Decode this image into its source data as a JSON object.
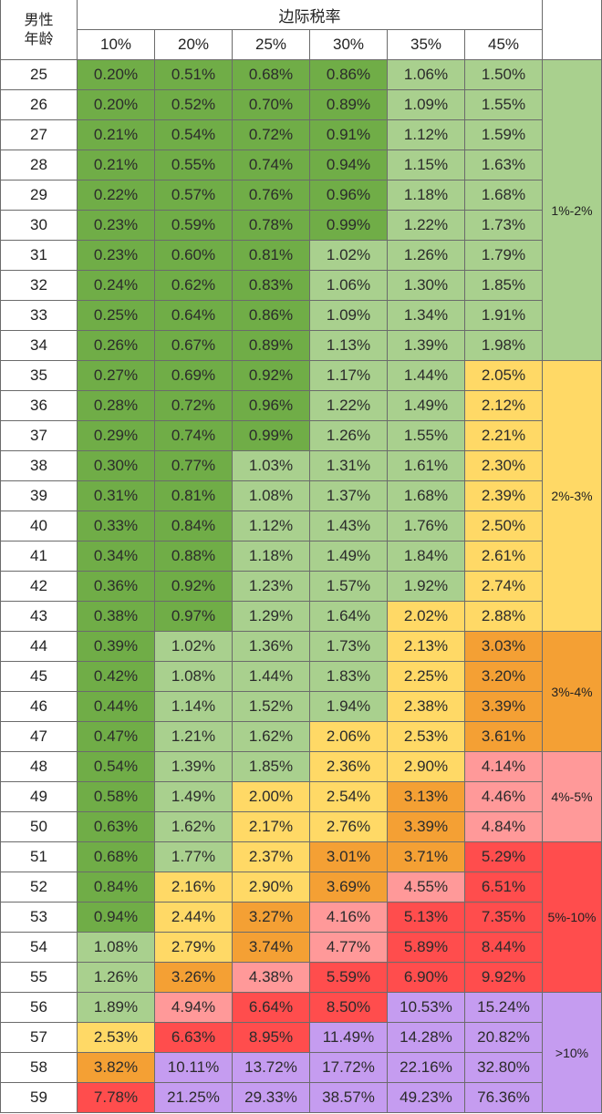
{
  "table": {
    "corner_line1": "男性",
    "corner_line2": "年龄",
    "group_header": "边际税率",
    "rates": [
      "10%",
      "20%",
      "25%",
      "30%",
      "35%",
      "45%"
    ],
    "colors": {
      "below_1": "#70ad47",
      "1_to_2": "#a9d08e",
      "2_to_3": "#ffd966",
      "3_to_4": "#f4a034",
      "4_to_5": "#ff9999",
      "5_to_10": "#ff4d4d",
      "above_10": "#c59cf0"
    },
    "rows": [
      {
        "age": "25",
        "values": [
          "0.20%",
          "0.51%",
          "0.68%",
          "0.86%",
          "1.06%",
          "1.50%"
        ]
      },
      {
        "age": "26",
        "values": [
          "0.20%",
          "0.52%",
          "0.70%",
          "0.89%",
          "1.09%",
          "1.55%"
        ]
      },
      {
        "age": "27",
        "values": [
          "0.21%",
          "0.54%",
          "0.72%",
          "0.91%",
          "1.12%",
          "1.59%"
        ]
      },
      {
        "age": "28",
        "values": [
          "0.21%",
          "0.55%",
          "0.74%",
          "0.94%",
          "1.15%",
          "1.63%"
        ]
      },
      {
        "age": "29",
        "values": [
          "0.22%",
          "0.57%",
          "0.76%",
          "0.96%",
          "1.18%",
          "1.68%"
        ]
      },
      {
        "age": "30",
        "values": [
          "0.23%",
          "0.59%",
          "0.78%",
          "0.99%",
          "1.22%",
          "1.73%"
        ]
      },
      {
        "age": "31",
        "values": [
          "0.23%",
          "0.60%",
          "0.81%",
          "1.02%",
          "1.26%",
          "1.79%"
        ]
      },
      {
        "age": "32",
        "values": [
          "0.24%",
          "0.62%",
          "0.83%",
          "1.06%",
          "1.30%",
          "1.85%"
        ]
      },
      {
        "age": "33",
        "values": [
          "0.25%",
          "0.64%",
          "0.86%",
          "1.09%",
          "1.34%",
          "1.91%"
        ]
      },
      {
        "age": "34",
        "values": [
          "0.26%",
          "0.67%",
          "0.89%",
          "1.13%",
          "1.39%",
          "1.98%"
        ]
      },
      {
        "age": "35",
        "values": [
          "0.27%",
          "0.69%",
          "0.92%",
          "1.17%",
          "1.44%",
          "2.05%"
        ]
      },
      {
        "age": "36",
        "values": [
          "0.28%",
          "0.72%",
          "0.96%",
          "1.22%",
          "1.49%",
          "2.12%"
        ]
      },
      {
        "age": "37",
        "values": [
          "0.29%",
          "0.74%",
          "0.99%",
          "1.26%",
          "1.55%",
          "2.21%"
        ]
      },
      {
        "age": "38",
        "values": [
          "0.30%",
          "0.77%",
          "1.03%",
          "1.31%",
          "1.61%",
          "2.30%"
        ]
      },
      {
        "age": "39",
        "values": [
          "0.31%",
          "0.81%",
          "1.08%",
          "1.37%",
          "1.68%",
          "2.39%"
        ]
      },
      {
        "age": "40",
        "values": [
          "0.33%",
          "0.84%",
          "1.12%",
          "1.43%",
          "1.76%",
          "2.50%"
        ]
      },
      {
        "age": "41",
        "values": [
          "0.34%",
          "0.88%",
          "1.18%",
          "1.49%",
          "1.84%",
          "2.61%"
        ]
      },
      {
        "age": "42",
        "values": [
          "0.36%",
          "0.92%",
          "1.23%",
          "1.57%",
          "1.92%",
          "2.74%"
        ]
      },
      {
        "age": "43",
        "values": [
          "0.38%",
          "0.97%",
          "1.29%",
          "1.64%",
          "2.02%",
          "2.88%"
        ]
      },
      {
        "age": "44",
        "values": [
          "0.39%",
          "1.02%",
          "1.36%",
          "1.73%",
          "2.13%",
          "3.03%"
        ]
      },
      {
        "age": "45",
        "values": [
          "0.42%",
          "1.08%",
          "1.44%",
          "1.83%",
          "2.25%",
          "3.20%"
        ]
      },
      {
        "age": "46",
        "values": [
          "0.44%",
          "1.14%",
          "1.52%",
          "1.94%",
          "2.38%",
          "3.39%"
        ]
      },
      {
        "age": "47",
        "values": [
          "0.47%",
          "1.21%",
          "1.62%",
          "2.06%",
          "2.53%",
          "3.61%"
        ]
      },
      {
        "age": "48",
        "values": [
          "0.54%",
          "1.39%",
          "1.85%",
          "2.36%",
          "2.90%",
          "4.14%"
        ]
      },
      {
        "age": "49",
        "values": [
          "0.58%",
          "1.49%",
          "2.00%",
          "2.54%",
          "3.13%",
          "4.46%"
        ]
      },
      {
        "age": "50",
        "values": [
          "0.63%",
          "1.62%",
          "2.17%",
          "2.76%",
          "3.39%",
          "4.84%"
        ]
      },
      {
        "age": "51",
        "values": [
          "0.68%",
          "1.77%",
          "2.37%",
          "3.01%",
          "3.71%",
          "5.29%"
        ]
      },
      {
        "age": "52",
        "values": [
          "0.84%",
          "2.16%",
          "2.90%",
          "3.69%",
          "4.55%",
          "6.51%"
        ]
      },
      {
        "age": "53",
        "values": [
          "0.94%",
          "2.44%",
          "3.27%",
          "4.16%",
          "5.13%",
          "7.35%"
        ]
      },
      {
        "age": "54",
        "values": [
          "1.08%",
          "2.79%",
          "3.74%",
          "4.77%",
          "5.89%",
          "8.44%"
        ]
      },
      {
        "age": "55",
        "values": [
          "1.26%",
          "3.26%",
          "4.38%",
          "5.59%",
          "6.90%",
          "9.92%"
        ]
      },
      {
        "age": "56",
        "values": [
          "1.89%",
          "4.94%",
          "6.64%",
          "8.50%",
          "10.53%",
          "15.24%"
        ]
      },
      {
        "age": "57",
        "values": [
          "2.53%",
          "6.63%",
          "8.95%",
          "11.49%",
          "14.28%",
          "20.82%"
        ]
      },
      {
        "age": "58",
        "values": [
          "3.82%",
          "10.11%",
          "13.72%",
          "17.72%",
          "22.16%",
          "32.80%"
        ]
      },
      {
        "age": "59",
        "values": [
          "7.78%",
          "21.25%",
          "29.33%",
          "38.57%",
          "49.23%",
          "76.36%"
        ]
      }
    ],
    "bands": [
      {
        "label": "1%-2%",
        "from_age": "25",
        "to_age": "34"
      },
      {
        "label": "2%-3%",
        "from_age": "35",
        "to_age": "43"
      },
      {
        "label": "3%-4%",
        "from_age": "44",
        "to_age": "47"
      },
      {
        "label": "4%-5%",
        "from_age": "48",
        "to_age": "50"
      },
      {
        "label": "5%-10%",
        "from_age": "51",
        "to_age": "55"
      },
      {
        "label": ">10%",
        "from_age": "56",
        "to_age": "59"
      }
    ]
  }
}
